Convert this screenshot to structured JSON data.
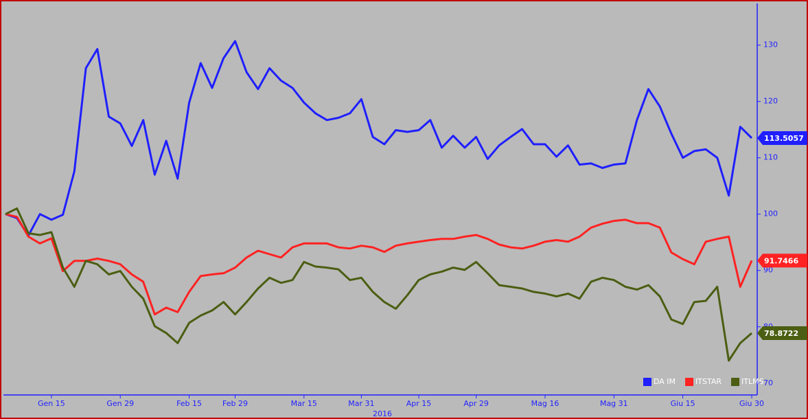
{
  "chart_data": {
    "type": "line",
    "xlabel": "2016",
    "categories": [
      null,
      null,
      null,
      null,
      "Gen 15",
      null,
      null,
      null,
      null,
      null,
      "Gen 29",
      null,
      null,
      null,
      null,
      null,
      "Feb 15",
      null,
      null,
      null,
      "Feb 29",
      null,
      null,
      null,
      null,
      null,
      "Mar 15",
      null,
      null,
      null,
      null,
      "Mar 31",
      null,
      null,
      null,
      null,
      "Apr 15",
      null,
      null,
      null,
      null,
      "Apr 29",
      null,
      null,
      null,
      null,
      null,
      "Mag 16",
      null,
      null,
      null,
      null,
      null,
      "Mag 31",
      null,
      null,
      null,
      null,
      null,
      "Giu 15",
      null,
      null,
      null,
      null,
      null,
      "Giu 30"
    ],
    "series": [
      {
        "name": "DA IM",
        "color": "#1f1fff",
        "values": [
          100,
          99.3,
          96.2,
          100,
          99,
          99.9,
          107.6,
          125.9,
          129.3,
          117.3,
          116.1,
          112.1,
          116.7,
          107,
          113,
          106.3,
          119.8,
          126.8,
          122.4,
          127.7,
          130.7,
          125.2,
          122.2,
          125.9,
          123.7,
          122.4,
          119.8,
          117.9,
          116.7,
          117.1,
          117.9,
          120.4,
          113.7,
          112.4,
          114.9,
          114.6,
          114.9,
          116.7,
          111.8,
          113.9,
          111.8,
          113.7,
          109.8,
          112.2,
          113.7,
          115.1,
          112.4,
          112.4,
          110.2,
          112.2,
          108.8,
          109,
          108.2,
          108.8,
          109,
          116.7,
          122.2,
          119.1,
          114.3,
          110,
          111.2,
          111.5,
          110,
          103.3,
          115.5,
          113.5057
        ]
      },
      {
        "name": "ITSTAR",
        "color": "#ff2222",
        "values": [
          100,
          99.5,
          96,
          94.8,
          95.7,
          89.9,
          91.7,
          91.7,
          92.1,
          91.7,
          91.1,
          89.3,
          88,
          82.2,
          83.4,
          82.6,
          86.2,
          89,
          89.3,
          89.5,
          90.5,
          92.3,
          93.5,
          92.9,
          92.3,
          94.1,
          94.8,
          94.8,
          94.8,
          94.1,
          93.9,
          94.4,
          94.1,
          93.3,
          94.4,
          94.8,
          95.1,
          95.4,
          95.6,
          95.6,
          96,
          96.3,
          95.6,
          94.6,
          94.1,
          93.9,
          94.4,
          95.1,
          95.4,
          95.1,
          96,
          97.6,
          98.3,
          98.8,
          99,
          98.4,
          98.4,
          97.6,
          93.2,
          92,
          91.1,
          95.1,
          95.6,
          96,
          87.1,
          91.7466
        ]
      },
      {
        "name": "ITLMS",
        "color": "#4b5e12",
        "values": [
          100,
          101,
          96.6,
          96.3,
          96.8,
          90.5,
          87.1,
          91.7,
          91.1,
          89.3,
          89.9,
          87.1,
          85,
          80.1,
          78.9,
          77.1,
          80.7,
          82,
          82.9,
          84.4,
          82.2,
          84.4,
          86.8,
          88.7,
          87.8,
          88.3,
          91.5,
          90.7,
          90.5,
          90.2,
          88.3,
          88.7,
          86.2,
          84.4,
          83.2,
          85.6,
          88.3,
          89.3,
          89.8,
          90.5,
          90.1,
          91.5,
          89.5,
          87.4,
          87.1,
          86.8,
          86.2,
          85.9,
          85.4,
          85.9,
          85,
          88,
          88.7,
          88.3,
          87.1,
          86.6,
          87.4,
          85.4,
          81.3,
          80.5,
          84.4,
          84.6,
          87.1,
          74,
          77.1,
          78.8722
        ]
      }
    ],
    "ylim": [
      67.9,
      137.4
    ],
    "yticks": [
      70,
      80,
      90,
      100,
      110,
      120,
      130
    ],
    "y_axis_side": "right",
    "legend": "lower right",
    "background": "#bababa"
  }
}
